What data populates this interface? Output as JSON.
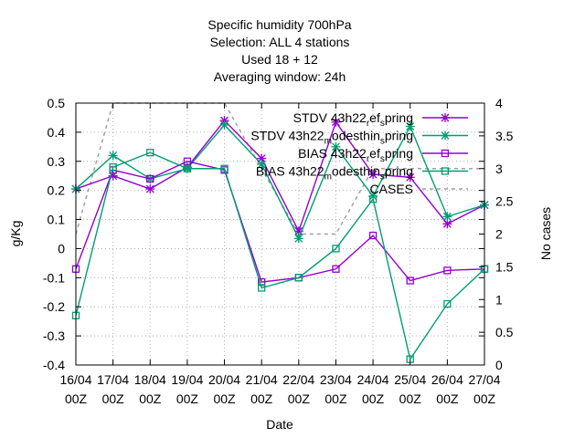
{
  "chart_data": {
    "type": "line",
    "title_lines": [
      "Specific humidity 700hPa",
      "Selection: ALL      4 stations",
      "Used  18  + 12",
      "Averaging window: 24h"
    ],
    "xlabel": "Date",
    "ylabel": "g/Kg",
    "y2label": "No cases",
    "ylim": [
      -0.4,
      0.5
    ],
    "y2lim": [
      0,
      4
    ],
    "yticks": [
      "-0.4",
      "-0.3",
      "-0.2",
      "-0.1",
      "0",
      "0.1",
      "0.2",
      "0.3",
      "0.4",
      "0.5"
    ],
    "y2ticks": [
      "0",
      "0.5",
      "1",
      "1.5",
      "2",
      "2.5",
      "3",
      "3.5",
      "4"
    ],
    "categories": [
      [
        "16/04",
        "00Z"
      ],
      [
        "17/04",
        "00Z"
      ],
      [
        "18/04",
        "00Z"
      ],
      [
        "19/04",
        "00Z"
      ],
      [
        "20/04",
        "00Z"
      ],
      [
        "21/04",
        "00Z"
      ],
      [
        "22/04",
        "00Z"
      ],
      [
        "23/04",
        "00Z"
      ],
      [
        "24/04",
        "00Z"
      ],
      [
        "25/04",
        "00Z"
      ],
      [
        "26/04",
        "00Z"
      ],
      [
        "27/04",
        "00Z"
      ]
    ],
    "grid": true,
    "legend_position": "top-right",
    "series": [
      {
        "legend_parts": [
          "STDV 43h22",
          "r",
          "ef",
          "s",
          "pring"
        ],
        "color": "#9400d3",
        "marker": "star",
        "values": [
          0.205,
          0.25,
          0.205,
          0.28,
          0.44,
          0.31,
          0.06,
          0.435,
          0.255,
          0.245,
          0.085,
          0.15
        ]
      },
      {
        "legend_parts": [
          "STDV 43h22",
          "m",
          "odesthin",
          "s",
          "pring"
        ],
        "color": "#009e73",
        "marker": "star",
        "values": [
          0.205,
          0.32,
          0.24,
          0.275,
          0.425,
          0.29,
          0.035,
          0.35,
          0.18,
          0.42,
          0.11,
          0.15
        ]
      },
      {
        "legend_parts": [
          "BIAS 43h22",
          "r",
          "ef",
          "s",
          "pring"
        ],
        "color": "#9400d3",
        "marker": "square",
        "values": [
          -0.07,
          0.27,
          0.24,
          0.3,
          0.27,
          -0.115,
          -0.1,
          -0.07,
          0.045,
          -0.11,
          -0.075,
          -0.07
        ]
      },
      {
        "legend_parts": [
          "BIAS 43h22",
          "m",
          "odesthin",
          "s",
          "pring"
        ],
        "color": "#009e73",
        "marker": "square",
        "values": [
          -0.23,
          0.28,
          0.33,
          0.275,
          0.275,
          -0.135,
          -0.1,
          0.0,
          0.17,
          -0.38,
          -0.19,
          -0.07
        ]
      },
      {
        "legend_parts": [
          "CASES"
        ],
        "color": "#a0a0a0",
        "marker": "none",
        "dashed": true,
        "axis": "y2",
        "values": [
          2,
          4,
          4,
          4,
          4,
          3,
          2,
          2,
          3,
          3,
          3,
          3
        ]
      }
    ]
  }
}
